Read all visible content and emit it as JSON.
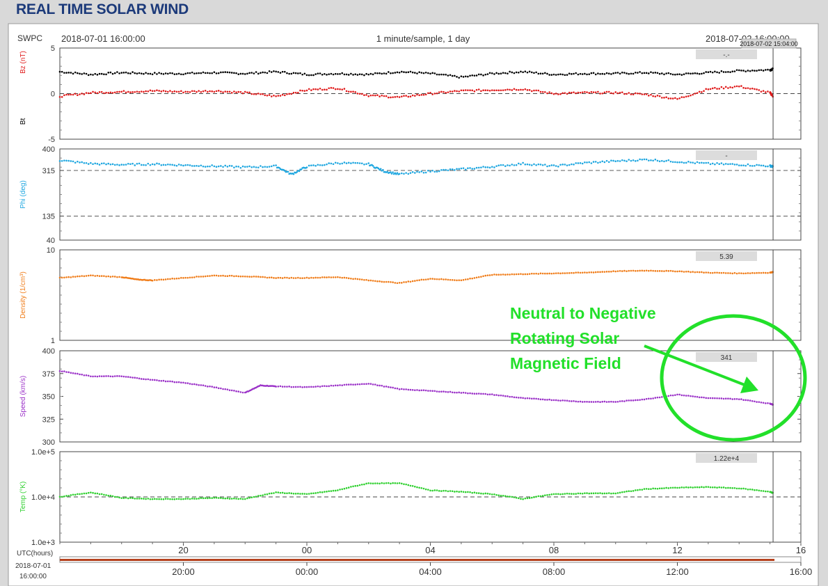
{
  "page": {
    "title": "REAL TIME SOLAR WIND",
    "source": "SWPC",
    "start_time": "2018-07-01 16:00:00",
    "end_time": "2018-07-02 16:00:00",
    "sampling": "1 minute/sample, 1 day",
    "cursor_time": "2018-07-02 15:04:00",
    "x_axis_title": "UTC(hours)",
    "x_axis_date": "2018-07-01",
    "x_axis_date_time": "16:00:00"
  },
  "annotation": {
    "lines": [
      "Neutral to Negative",
      "Rotating Solar",
      "Magnetic Field"
    ],
    "color": "#22e02a"
  },
  "chart_data": [
    {
      "type": "line",
      "name": "magnetic-field",
      "ylabel": "Bz (nT)",
      "ylabel2": "Bt",
      "ylim": [
        -5,
        5
      ],
      "yticks": [
        "5",
        "0",
        "-5"
      ],
      "ref_lines": [
        0
      ],
      "readout": "-.-",
      "x_hours": [
        0,
        1,
        2,
        3,
        4,
        5,
        6,
        7,
        8,
        9,
        10,
        11,
        12,
        13,
        14,
        15,
        16,
        17,
        18,
        19,
        20,
        21,
        22,
        23,
        23.1
      ],
      "series": [
        {
          "name": "Bt",
          "color": "#000000",
          "values": [
            2.4,
            2.1,
            2.3,
            2.2,
            2.2,
            2.3,
            2.2,
            2.4,
            2.1,
            2.2,
            2.1,
            2.4,
            2.2,
            1.8,
            2.2,
            2.4,
            2.1,
            2.2,
            2.2,
            2.3,
            2.1,
            2.3,
            2.5,
            2.6,
            2.7
          ]
        },
        {
          "name": "Bz",
          "color": "#e01b1b",
          "values": [
            -0.3,
            0.1,
            0.2,
            0.3,
            0.2,
            0.3,
            0.1,
            -0.3,
            0.4,
            0.6,
            -0.2,
            -0.4,
            0.0,
            0.3,
            0.4,
            0.5,
            0.0,
            0.1,
            0.1,
            -0.1,
            -0.6,
            0.5,
            0.8,
            0.1,
            -0.3
          ]
        }
      ]
    },
    {
      "type": "line",
      "name": "phi",
      "ylabel": "Phi (deg)",
      "ylim": [
        40,
        400
      ],
      "yticks": [
        "400",
        "315",
        "135",
        "40"
      ],
      "ref_lines": [
        315,
        135
      ],
      "readout": "-",
      "x_hours": [
        0,
        1,
        2,
        3,
        4,
        5,
        6,
        7,
        7.5,
        8,
        9,
        10,
        10.5,
        11,
        12,
        13,
        14,
        15,
        16,
        17,
        18,
        19,
        20,
        21,
        22,
        23,
        23.1
      ],
      "series": [
        {
          "name": "Phi",
          "color": "#1fa7e0",
          "values": [
            355,
            342,
            338,
            340,
            336,
            332,
            328,
            332,
            300,
            330,
            345,
            340,
            312,
            300,
            312,
            320,
            330,
            342,
            332,
            345,
            352,
            358,
            350,
            342,
            338,
            333,
            330
          ]
        }
      ]
    },
    {
      "type": "scatter",
      "name": "density",
      "ylabel": "Density (1/cm³)",
      "yscale": "log",
      "ylim": [
        1,
        10
      ],
      "yticks": [
        "10",
        "1"
      ],
      "readout": "5.39",
      "x_hours": [
        0,
        1,
        2,
        2.5,
        3,
        4,
        5,
        6,
        7,
        8,
        9,
        10,
        11,
        12,
        13,
        14,
        15,
        16,
        17,
        18,
        19,
        20,
        21,
        22,
        23,
        23.1
      ],
      "series": [
        {
          "name": "Density",
          "color": "#f07d1a",
          "values": [
            4.9,
            5.2,
            5.0,
            4.7,
            4.6,
            4.9,
            5.2,
            5.1,
            4.9,
            4.9,
            5.0,
            4.6,
            4.3,
            4.8,
            4.6,
            5.3,
            5.4,
            5.5,
            5.6,
            5.8,
            5.9,
            5.8,
            5.6,
            5.5,
            5.6,
            5.7
          ]
        }
      ]
    },
    {
      "type": "line",
      "name": "speed",
      "ylabel": "Speed (km/s)",
      "ylim": [
        300,
        400
      ],
      "yticks": [
        "400",
        "375",
        "350",
        "325",
        "300"
      ],
      "readout": "341",
      "x_hours": [
        0,
        1,
        2,
        3,
        4,
        5,
        6,
        6.5,
        7,
        8,
        9,
        10,
        11,
        12,
        13,
        14,
        15,
        16,
        17,
        18,
        19,
        20,
        21,
        22,
        23,
        23.1
      ],
      "series": [
        {
          "name": "Speed",
          "color": "#9b32c8",
          "values": [
            378,
            372,
            372,
            368,
            365,
            360,
            354,
            362,
            361,
            360,
            362,
            364,
            358,
            356,
            354,
            352,
            348,
            346,
            344,
            344,
            347,
            352,
            348,
            347,
            342,
            341
          ]
        }
      ]
    },
    {
      "type": "line",
      "name": "temperature",
      "ylabel": "Temp (°K)",
      "yscale": "log",
      "ylim": [
        1000,
        100000
      ],
      "yticks": [
        "1.0e+5",
        "1.0e+4",
        "1.0e+3"
      ],
      "ref_lines": [
        10000
      ],
      "readout": "1.22e+4",
      "x_hours": [
        0,
        1,
        2,
        3,
        4,
        5,
        6,
        7,
        8,
        9,
        10,
        11,
        12,
        13,
        14,
        15,
        16,
        17,
        18,
        19,
        20,
        21,
        22,
        23,
        23.1
      ],
      "series": [
        {
          "name": "Temp",
          "color": "#2fd02f",
          "values": [
            10000,
            12500,
            9500,
            9000,
            9000,
            9500,
            9000,
            12500,
            11500,
            14000,
            20000,
            20000,
            14000,
            13000,
            11500,
            9000,
            11500,
            12000,
            12000,
            15000,
            16000,
            16500,
            15500,
            13000,
            12200
          ]
        }
      ]
    },
    {
      "type": "axis",
      "name": "time-axis",
      "top_ticks": [
        "20",
        "00",
        "04",
        "08",
        "12",
        "16"
      ],
      "top_tick_hours": [
        4,
        8,
        12,
        16,
        20,
        24
      ],
      "bottom_ticks": [
        "20:00",
        "00:00",
        "04:00",
        "08:00",
        "12:00",
        "16:00"
      ],
      "bottom_tick_hours": [
        4,
        8,
        12,
        16,
        20,
        24
      ]
    }
  ]
}
